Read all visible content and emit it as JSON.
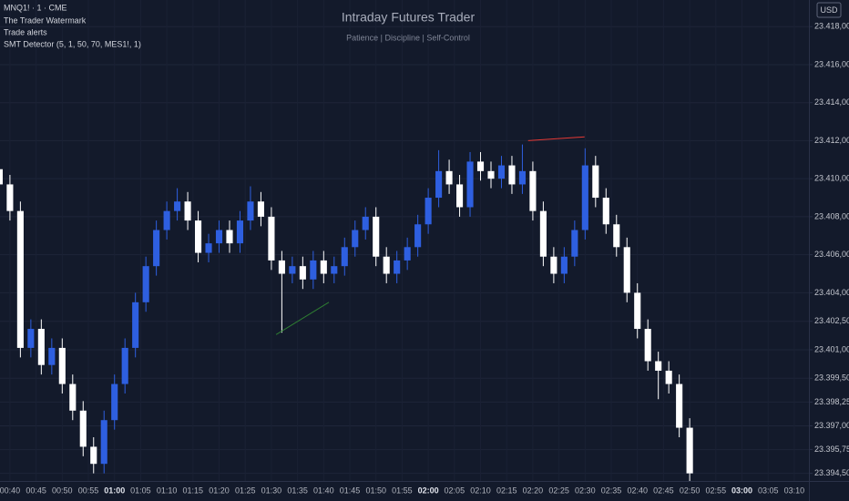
{
  "chart_data": {
    "type": "candlestick",
    "symbol_label": "MNQ1! · 1 · CME",
    "indicators": [
      "The Trader Watermark",
      "Trade alerts",
      "SMT Detector (5, 1, 50, 70, MES1!, 1)"
    ],
    "title": "Intraday Futures Trader",
    "subtitle": "Patience | Discipline | Self-Control",
    "currency": "USD",
    "up_color": "#2e5fe0",
    "down_color": "#ffffff",
    "grid": true,
    "xlim": [
      38.1,
      192.8
    ],
    "ylim": [
      23394.1,
      23419.4
    ],
    "yticks": [
      {
        "value": 23418,
        "label": "23.418,00"
      },
      {
        "value": 23416,
        "label": "23.416,00"
      },
      {
        "value": 23414,
        "label": "23.414,00"
      },
      {
        "value": 23412,
        "label": "23.412,00"
      },
      {
        "value": 23410,
        "label": "23.410,00"
      },
      {
        "value": 23408,
        "label": "23.408,00"
      },
      {
        "value": 23406,
        "label": "23.406,00"
      },
      {
        "value": 23404,
        "label": "23.404,00"
      },
      {
        "value": 23402.5,
        "label": "23.402,50"
      },
      {
        "value": 23401,
        "label": "23.401,00"
      },
      {
        "value": 23399.5,
        "label": "23.399,50"
      },
      {
        "value": 23398.25,
        "label": "23.398,25"
      },
      {
        "value": 23397,
        "label": "23.397,00"
      },
      {
        "value": 23395.75,
        "label": "23.395,75"
      },
      {
        "value": 23394.5,
        "label": "23.394,50"
      }
    ],
    "xticks": [
      {
        "value": 40,
        "label": "00:40"
      },
      {
        "value": 45,
        "label": "00:45"
      },
      {
        "value": 50,
        "label": "00:50"
      },
      {
        "value": 55,
        "label": "00:55"
      },
      {
        "value": 60,
        "label": "01:00",
        "bold": true
      },
      {
        "value": 65,
        "label": "01:05"
      },
      {
        "value": 70,
        "label": "01:10"
      },
      {
        "value": 75,
        "label": "01:15"
      },
      {
        "value": 80,
        "label": "01:20"
      },
      {
        "value": 85,
        "label": "01:25"
      },
      {
        "value": 90,
        "label": "01:30"
      },
      {
        "value": 95,
        "label": "01:35"
      },
      {
        "value": 100,
        "label": "01:40"
      },
      {
        "value": 105,
        "label": "01:45"
      },
      {
        "value": 110,
        "label": "01:50"
      },
      {
        "value": 115,
        "label": "01:55"
      },
      {
        "value": 120,
        "label": "02:00",
        "bold": true
      },
      {
        "value": 125,
        "label": "02:05"
      },
      {
        "value": 130,
        "label": "02:10"
      },
      {
        "value": 135,
        "label": "02:15"
      },
      {
        "value": 140,
        "label": "02:20"
      },
      {
        "value": 145,
        "label": "02:25"
      },
      {
        "value": 150,
        "label": "02:30"
      },
      {
        "value": 155,
        "label": "02:35"
      },
      {
        "value": 160,
        "label": "02:40"
      },
      {
        "value": 165,
        "label": "02:45"
      },
      {
        "value": 170,
        "label": "02:50"
      },
      {
        "value": 175,
        "label": "02:55"
      },
      {
        "value": 180,
        "label": "03:00",
        "bold": true
      },
      {
        "value": 185,
        "label": "03:05"
      },
      {
        "value": 190,
        "label": "03:10"
      }
    ],
    "x": [
      38,
      40,
      42,
      44,
      46,
      48,
      50,
      52,
      54,
      56,
      58,
      60,
      62,
      64,
      66,
      68,
      70,
      72,
      74,
      76,
      78,
      80,
      82,
      84,
      86,
      88,
      90,
      92,
      94,
      96,
      98,
      100,
      102,
      104,
      106,
      108,
      110,
      112,
      114,
      116,
      118,
      120,
      122,
      124,
      126,
      128,
      130,
      132,
      134,
      136,
      138,
      140,
      142,
      144,
      146,
      148,
      150,
      152,
      154,
      156,
      158,
      160,
      162,
      164,
      166,
      168,
      170
    ],
    "candles": [
      [
        23410.5,
        23411.2,
        23409.2,
        23409.7
      ],
      [
        23409.7,
        23410.2,
        23407.8,
        23408.3
      ],
      [
        23408.3,
        23408.8,
        23400.6,
        23401.1
      ],
      [
        23401.1,
        23402.6,
        23400.6,
        23402.1
      ],
      [
        23402.1,
        23402.6,
        23399.7,
        23400.2
      ],
      [
        23400.2,
        23401.6,
        23399.7,
        23401.1
      ],
      [
        23401.1,
        23401.6,
        23398.7,
        23399.2
      ],
      [
        23399.2,
        23399.7,
        23397.3,
        23397.8
      ],
      [
        23397.8,
        23398.3,
        23395.4,
        23395.9
      ],
      [
        23395.9,
        23396.4,
        23394.5,
        23395.0
      ],
      [
        23395.0,
        23397.8,
        23394.5,
        23397.3
      ],
      [
        23397.3,
        23399.7,
        23396.8,
        23399.2
      ],
      [
        23399.2,
        23401.6,
        23398.7,
        23401.1
      ],
      [
        23401.1,
        23404.0,
        23400.6,
        23403.5
      ],
      [
        23403.5,
        23405.9,
        23403.0,
        23405.4
      ],
      [
        23405.4,
        23407.8,
        23404.9,
        23407.3
      ],
      [
        23407.3,
        23408.8,
        23406.8,
        23408.3
      ],
      [
        23408.3,
        23409.5,
        23407.8,
        23408.8
      ],
      [
        23408.8,
        23409.3,
        23407.3,
        23407.8
      ],
      [
        23407.8,
        23408.3,
        23405.6,
        23406.1
      ],
      [
        23406.1,
        23407.1,
        23405.6,
        23406.6
      ],
      [
        23406.6,
        23407.8,
        23406.1,
        23407.3
      ],
      [
        23407.3,
        23407.8,
        23406.1,
        23406.6
      ],
      [
        23406.6,
        23408.3,
        23406.1,
        23407.8
      ],
      [
        23407.8,
        23409.6,
        23407.3,
        23408.8
      ],
      [
        23408.8,
        23409.3,
        23407.5,
        23408.0
      ],
      [
        23408.0,
        23408.5,
        23405.2,
        23405.7
      ],
      [
        23405.7,
        23406.2,
        23401.9,
        23405.0
      ],
      [
        23405.0,
        23405.9,
        23404.5,
        23405.4
      ],
      [
        23405.4,
        23405.9,
        23404.2,
        23404.7
      ],
      [
        23404.7,
        23406.2,
        23404.2,
        23405.7
      ],
      [
        23405.7,
        23406.2,
        23404.5,
        23405.0
      ],
      [
        23405.0,
        23405.9,
        23404.5,
        23405.4
      ],
      [
        23405.4,
        23406.9,
        23404.9,
        23406.4
      ],
      [
        23406.4,
        23407.8,
        23405.9,
        23407.3
      ],
      [
        23407.3,
        23408.5,
        23406.8,
        23408.0
      ],
      [
        23408.0,
        23408.5,
        23405.4,
        23405.9
      ],
      [
        23405.9,
        23406.4,
        23404.5,
        23405.0
      ],
      [
        23405.0,
        23406.2,
        23404.5,
        23405.7
      ],
      [
        23405.7,
        23406.9,
        23405.2,
        23406.4
      ],
      [
        23406.4,
        23408.1,
        23405.9,
        23407.6
      ],
      [
        23407.6,
        23409.5,
        23407.1,
        23409.0
      ],
      [
        23409.0,
        23411.5,
        23408.5,
        23410.4
      ],
      [
        23410.4,
        23411.0,
        23409.2,
        23409.7
      ],
      [
        23409.7,
        23410.2,
        23408.0,
        23408.5
      ],
      [
        23408.5,
        23411.4,
        23408.0,
        23410.9
      ],
      [
        23410.9,
        23411.4,
        23409.9,
        23410.4
      ],
      [
        23410.4,
        23410.9,
        23409.5,
        23410.0
      ],
      [
        23410.0,
        23411.2,
        23409.5,
        23410.7
      ],
      [
        23410.7,
        23411.2,
        23409.2,
        23409.7
      ],
      [
        23409.7,
        23411.8,
        23409.2,
        23410.4
      ],
      [
        23410.4,
        23410.9,
        23407.8,
        23408.3
      ],
      [
        23408.3,
        23408.8,
        23405.4,
        23405.9
      ],
      [
        23405.9,
        23406.4,
        23404.5,
        23405.0
      ],
      [
        23405.0,
        23406.4,
        23404.5,
        23405.9
      ],
      [
        23405.9,
        23407.8,
        23405.4,
        23407.3
      ],
      [
        23407.3,
        23411.6,
        23406.8,
        23410.7
      ],
      [
        23410.7,
        23411.2,
        23408.5,
        23409.0
      ],
      [
        23409.0,
        23409.5,
        23407.1,
        23407.6
      ],
      [
        23407.6,
        23408.1,
        23405.9,
        23406.4
      ],
      [
        23406.4,
        23406.9,
        23403.5,
        23404.0
      ],
      [
        23404.0,
        23404.5,
        23401.6,
        23402.1
      ],
      [
        23402.1,
        23402.6,
        23399.9,
        23400.4
      ],
      [
        23400.4,
        23400.9,
        23398.4,
        23399.9
      ],
      [
        23399.9,
        23400.4,
        23398.7,
        23399.2
      ],
      [
        23399.2,
        23399.7,
        23396.4,
        23396.9
      ],
      [
        23396.9,
        23397.4,
        23394.1,
        23394.5
      ]
    ],
    "lines": [
      {
        "color": "#2e7d32",
        "x": [
          90.9,
          101.0
        ],
        "y": [
          23401.8,
          23403.5
        ]
      },
      {
        "color": "#e53935",
        "x": [
          139.1,
          149.9
        ],
        "y": [
          23412.0,
          23412.2
        ]
      }
    ]
  }
}
